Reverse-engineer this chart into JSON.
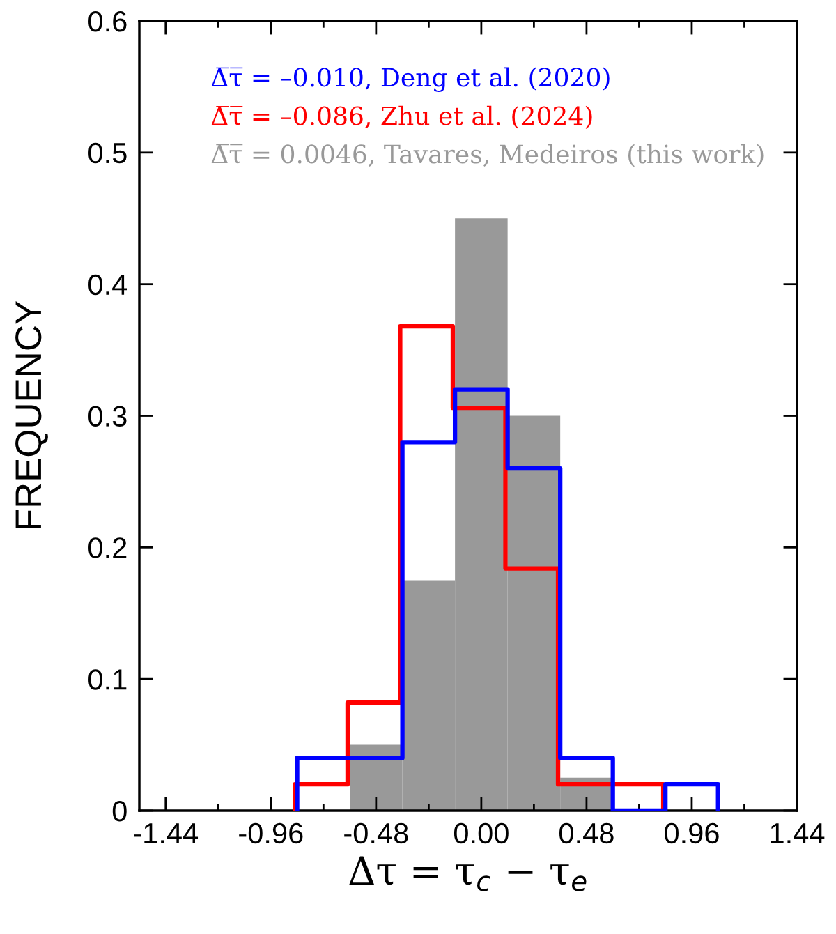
{
  "chart_data": {
    "type": "histogram",
    "xlabel": "Δτ = τ$_{c}$ − τ$_{e}$",
    "ylabel": "FREQUENCY",
    "bins": [
      -0.6,
      -0.36,
      -0.12,
      0.12,
      0.36,
      0.6
    ],
    "series": [
      {
        "color": "#999999",
        "values": [
          0.05,
          0.175,
          0.45,
          0.3,
          0.025
        ],
        "name": "Δ̅τ̅ = 0.0046, Tavares, Medeiros (this work)"
      },
      {
        "type": "line",
        "color": "#ff0000",
        "x": [
          -0.85,
          -0.85,
          -0.61,
          -0.61,
          -0.37,
          -0.37,
          -0.13,
          -0.13,
          0.11,
          0.11,
          0.35,
          0.35,
          0.83,
          0.83
        ],
        "values": [
          0,
          0.02,
          0.02,
          0.082,
          0.082,
          0.368,
          0.368,
          0.306,
          0.306,
          0.184,
          0.184,
          0.02,
          0.02,
          0
        ],
        "name": "Δ̅τ̅ = –0.086, Zhu et al. (2024)"
      },
      {
        "type": "line",
        "color": "#0000ff",
        "x": [
          -0.84,
          -0.84,
          -0.36,
          -0.36,
          -0.12,
          -0.12,
          0.12,
          0.12,
          0.36,
          0.36,
          0.6,
          0.6,
          0.84,
          0.84,
          1.08,
          1.08
        ],
        "values": [
          0,
          0.04,
          0.04,
          0.28,
          0.28,
          0.32,
          0.32,
          0.26,
          0.26,
          0.04,
          0.04,
          0,
          0,
          0.02,
          0.02,
          0
        ],
        "name": "Δ̅τ̅ = –0.010, Deng et al. (2020)"
      }
    ],
    "xlim": [
      -1.56,
      1.44
    ],
    "xticks": [
      {
        "value": -1.44,
        "label": "-1.44"
      },
      {
        "value": -1.2,
        "label": null
      },
      {
        "value": -0.96,
        "label": "-0.96"
      },
      {
        "value": -0.72,
        "label": null
      },
      {
        "value": -0.48,
        "label": "-0.48"
      },
      {
        "value": -0.24,
        "label": null
      },
      {
        "value": 0,
        "label": "0.00"
      },
      {
        "value": 0.24,
        "label": null
      },
      {
        "value": 0.48,
        "label": "0.48"
      },
      {
        "value": 0.72,
        "label": null
      },
      {
        "value": 0.96,
        "label": "0.96"
      },
      {
        "value": 1.2,
        "label": null
      },
      {
        "value": 1.44,
        "label": "1.44"
      }
    ],
    "ylim": [
      0,
      0.6
    ],
    "yticks": [
      0,
      0.1,
      0.2,
      0.3,
      0.4,
      0.5,
      0.6
    ],
    "legend": "top",
    "grid": false
  }
}
